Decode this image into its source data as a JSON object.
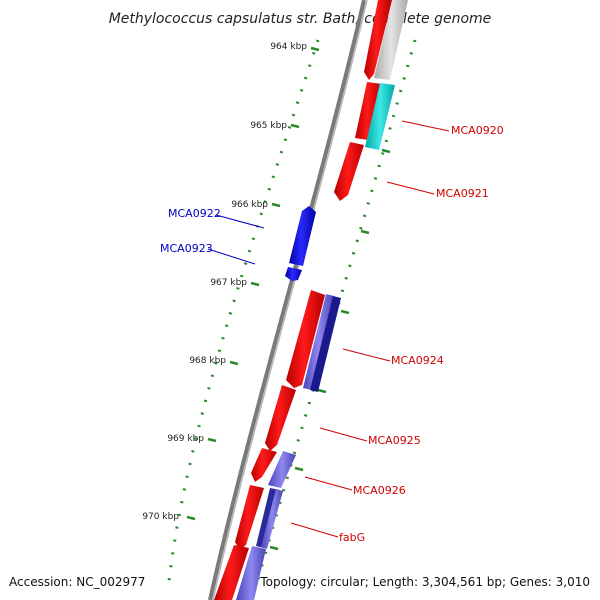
{
  "map": {
    "title": "Methylococcus capsulatus str. Bath, complete genome",
    "accession": "Accession: NC_002977",
    "topology": "Topology: circular; Length: 3,304,561 bp; Genes: 3,010",
    "ticks": [
      "964 kbp",
      "965 kbp",
      "966 kbp",
      "967 kbp",
      "968 kbp",
      "969 kbp",
      "970 kbp"
    ],
    "genes": [
      {
        "name": "MCA0920",
        "strand": "reverse-outer",
        "color": "#00c6c6"
      },
      {
        "name": "MCA0921",
        "strand": "reverse",
        "color": "#e00000"
      },
      {
        "name": "MCA0922",
        "strand": "forward",
        "color": "#0000e0"
      },
      {
        "name": "MCA0923",
        "strand": "forward",
        "color": "#0000e0"
      },
      {
        "name": "MCA0924",
        "strand": "reverse",
        "color": "#e00000"
      },
      {
        "name": "MCA0925",
        "strand": "reverse",
        "color": "#e00000"
      },
      {
        "name": "MCA0926",
        "strand": "reverse",
        "color": "#e00000"
      },
      {
        "name": "fabG",
        "strand": "reverse",
        "color": "#e00000"
      }
    ],
    "colors": {
      "backbone": "#808080",
      "tick_green": "#2a8a2a",
      "reverse_label": "#d00000",
      "forward_label": "#0000c8",
      "reverse_feature": "#e00000",
      "forward_feature": "#0000e0",
      "feature_purple": "#6b63d6",
      "feature_navy": "#1a1a8c",
      "feature_cyan": "#00c6c6",
      "feature_grey": "#c4c4c4"
    }
  }
}
